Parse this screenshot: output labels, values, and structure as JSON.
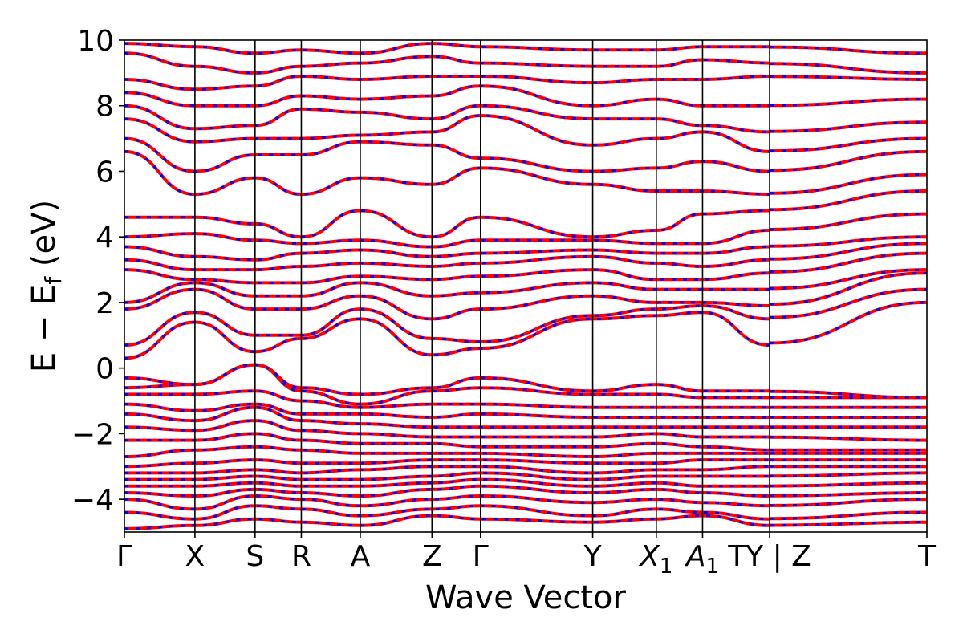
{
  "chart_data": {
    "type": "line",
    "title": "",
    "xlabel": "Wave Vector",
    "ylabel": "E − E_f (eV)",
    "ylabel_main": "E − E",
    "ylabel_sub": "f",
    "ylabel_unit": " (eV)",
    "ylim": [
      -5,
      10
    ],
    "yticks": [
      -4,
      -2,
      0,
      2,
      4,
      6,
      8,
      10
    ],
    "ytick_labels": [
      "−4",
      "−2",
      "0",
      "2",
      "4",
      "6",
      "8",
      "10"
    ],
    "kpoints": [
      {
        "label": "Γ",
        "x": 0
      },
      {
        "label": "X",
        "x": 0.61
      },
      {
        "label": "S",
        "x": 1.13
      },
      {
        "label": "R",
        "x": 1.53
      },
      {
        "label": "A",
        "x": 2.04
      },
      {
        "label": "Z",
        "x": 2.66
      },
      {
        "label": "Γ",
        "x": 3.08
      },
      {
        "label": "Y",
        "x": 4.05
      },
      {
        "label": "X",
        "sub": "1",
        "x": 4.6
      },
      {
        "label": "A",
        "sub": "1",
        "x": 5.0
      },
      {
        "label": "TY | Z",
        "x": 5.58
      },
      {
        "label": "T",
        "x": 6.94
      }
    ],
    "path_breaks": [
      5.58
    ],
    "series": [
      {
        "style": "solid",
        "color": "#ff0000"
      },
      {
        "style": "dashed",
        "color": "#0000ff"
      }
    ],
    "bands": {
      "x": [
        0,
        0.61,
        1.13,
        1.53,
        2.04,
        2.66,
        3.08,
        4.05,
        4.6,
        5.0,
        5.58,
        6.94
      ],
      "energies": [
        [
          -4.9,
          -4.8,
          -4.6,
          -4.7,
          -4.8,
          -4.5,
          -4.6,
          -4.7,
          -4.6,
          -4.5,
          -4.8,
          -4.7
        ],
        [
          -4.4,
          -4.6,
          -4.2,
          -4.3,
          -4.5,
          -4.3,
          -4.2,
          -4.5,
          -4.3,
          -4.4,
          -4.6,
          -4.4
        ],
        [
          -4.0,
          -4.3,
          -3.9,
          -4.0,
          -4.2,
          -4.0,
          -3.9,
          -4.1,
          -4.0,
          -4.1,
          -4.2,
          -4.0
        ],
        [
          -3.8,
          -3.9,
          -3.7,
          -3.8,
          -3.9,
          -3.7,
          -3.6,
          -3.8,
          -3.7,
          -3.8,
          -3.9,
          -3.8
        ],
        [
          -3.6,
          -3.6,
          -3.5,
          -3.6,
          -3.6,
          -3.5,
          -3.4,
          -3.6,
          -3.5,
          -3.6,
          -3.6,
          -3.5
        ],
        [
          -3.4,
          -3.4,
          -3.3,
          -3.4,
          -3.4,
          -3.3,
          -3.2,
          -3.4,
          -3.3,
          -3.3,
          -3.3,
          -3.2
        ],
        [
          -3.2,
          -3.2,
          -3.1,
          -3.2,
          -3.1,
          -3.0,
          -3.0,
          -3.2,
          -3.1,
          -3.1,
          -3.0,
          -3.0
        ],
        [
          -3.0,
          -2.9,
          -2.8,
          -2.9,
          -2.9,
          -2.8,
          -2.8,
          -2.9,
          -2.9,
          -2.8,
          -2.8,
          -2.8
        ],
        [
          -2.7,
          -2.5,
          -2.4,
          -2.5,
          -2.6,
          -2.6,
          -2.6,
          -2.7,
          -2.6,
          -2.6,
          -2.6,
          -2.6
        ],
        [
          -2.2,
          -2.2,
          -2.0,
          -2.2,
          -2.3,
          -2.3,
          -2.4,
          -2.4,
          -2.3,
          -2.4,
          -2.5,
          -2.5
        ],
        [
          -1.8,
          -1.9,
          -1.6,
          -1.9,
          -2.0,
          -2.1,
          -2.1,
          -2.1,
          -2.0,
          -2.1,
          -2.1,
          -2.2
        ],
        [
          -1.4,
          -1.6,
          -1.2,
          -1.6,
          -1.7,
          -1.8,
          -1.8,
          -1.8,
          -1.8,
          -1.8,
          -1.8,
          -1.8
        ],
        [
          -1.1,
          -1.3,
          -1.1,
          -1.4,
          -1.4,
          -1.5,
          -1.4,
          -1.5,
          -1.5,
          -1.5,
          -1.5,
          -1.5
        ],
        [
          -0.8,
          -0.8,
          -0.7,
          -1.0,
          -1.2,
          -1.1,
          -1.1,
          -1.2,
          -1.2,
          -1.2,
          -1.2,
          -1.2
        ],
        [
          -0.6,
          -0.5,
          0.1,
          -0.7,
          -1.1,
          -0.7,
          -0.6,
          -0.8,
          -0.8,
          -0.9,
          -0.9,
          -0.9
        ],
        [
          -0.3,
          -0.5,
          0.1,
          -0.6,
          -0.8,
          -0.6,
          -0.3,
          -0.7,
          -0.5,
          -0.7,
          -0.7,
          -0.9
        ],
        [
          0.3,
          1.4,
          0.5,
          0.9,
          1.5,
          0.4,
          0.6,
          1.5,
          1.6,
          1.7,
          0.7,
          2.0
        ],
        [
          0.7,
          1.7,
          1.0,
          1.0,
          1.8,
          0.9,
          0.8,
          1.6,
          1.8,
          1.9,
          1.5,
          2.4
        ],
        [
          1.8,
          2.4,
          1.8,
          1.8,
          2.2,
          1.5,
          1.8,
          2.2,
          2.0,
          2.0,
          1.9,
          2.9
        ],
        [
          2.0,
          2.6,
          2.2,
          2.2,
          2.6,
          2.2,
          2.3,
          2.6,
          2.4,
          2.4,
          2.4,
          3.0
        ],
        [
          3.0,
          2.7,
          2.6,
          2.6,
          2.8,
          2.7,
          2.8,
          3.0,
          2.7,
          2.7,
          2.9,
          3.5
        ],
        [
          3.3,
          3.0,
          3.0,
          3.1,
          3.2,
          3.1,
          3.2,
          3.4,
          3.2,
          3.1,
          3.3,
          3.8
        ],
        [
          3.7,
          3.4,
          3.3,
          3.5,
          3.6,
          3.4,
          3.5,
          3.6,
          3.5,
          3.5,
          3.7,
          4.0
        ],
        [
          4.0,
          4.1,
          3.9,
          3.8,
          3.9,
          3.7,
          3.9,
          3.9,
          3.8,
          3.8,
          4.2,
          4.7
        ],
        [
          4.6,
          4.6,
          4.4,
          4.0,
          4.8,
          4.0,
          4.6,
          4.0,
          4.2,
          4.7,
          4.8,
          5.4
        ],
        [
          6.6,
          5.3,
          5.8,
          5.3,
          5.8,
          5.6,
          6.1,
          5.6,
          5.4,
          5.4,
          5.3,
          5.9
        ],
        [
          7.0,
          6.0,
          6.5,
          6.5,
          6.9,
          6.8,
          6.4,
          6.0,
          6.1,
          6.3,
          6.0,
          6.6
        ],
        [
          7.6,
          6.9,
          7.0,
          7.0,
          7.1,
          7.2,
          7.7,
          6.8,
          7.0,
          7.2,
          6.6,
          7.0
        ],
        [
          8.0,
          7.3,
          7.4,
          7.9,
          7.8,
          7.6,
          8.0,
          7.6,
          7.6,
          7.4,
          7.2,
          7.5
        ],
        [
          8.4,
          8.0,
          8.0,
          8.3,
          8.2,
          8.3,
          8.6,
          8.0,
          8.2,
          8.0,
          8.0,
          8.2
        ],
        [
          8.8,
          8.5,
          8.6,
          8.9,
          8.8,
          8.9,
          8.9,
          8.7,
          8.8,
          8.8,
          8.9,
          8.8
        ],
        [
          9.6,
          9.2,
          9.0,
          9.2,
          9.3,
          9.5,
          9.3,
          9.2,
          9.2,
          9.4,
          9.3,
          9.0
        ],
        [
          9.9,
          9.8,
          9.6,
          9.7,
          9.6,
          9.9,
          9.8,
          9.7,
          9.7,
          9.8,
          9.8,
          9.6
        ]
      ]
    }
  }
}
